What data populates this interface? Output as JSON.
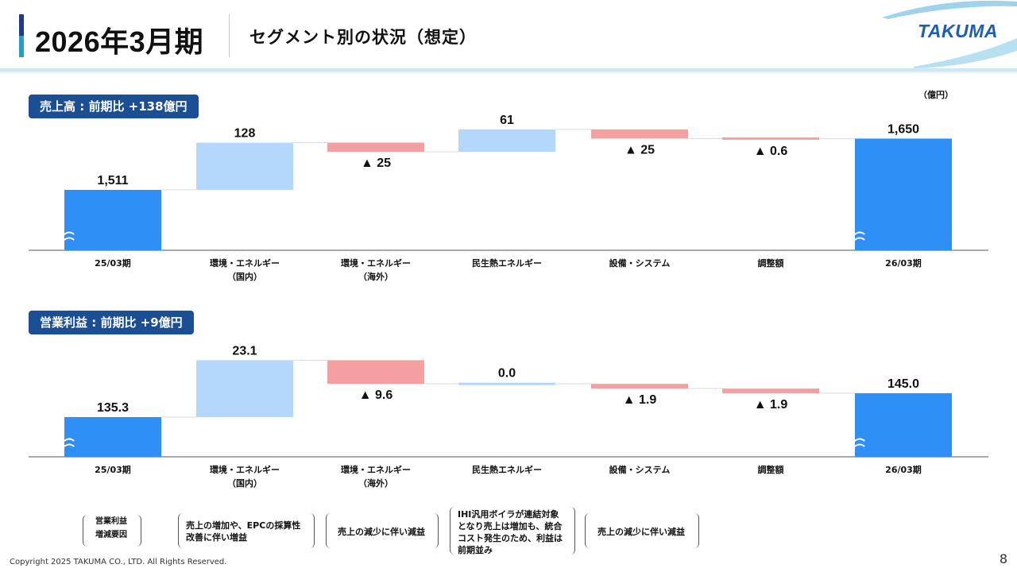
{
  "header": {
    "period": "2026年3月期",
    "subtitle": "セグメント別の状況（想定）",
    "logo": "TAKUMA"
  },
  "unit_label": "（億円）",
  "sections": {
    "sales_label": "売上高 : 前期比 +138億円",
    "op_label": "営業利益 : 前期比 +9億円"
  },
  "colors": {
    "total": "#2e8ff7",
    "increase": "#b3d8fb",
    "decrease": "#f5a0a0",
    "connector": "#d9d9d9",
    "section_bg": "#1b4f93"
  },
  "chart_data": [
    {
      "type": "bar",
      "subtype": "waterfall",
      "title": "売上高 : 前期比 +138億円",
      "categories": [
        "25/03期",
        "環境・エネルギー\n（国内）",
        "環境・エネルギー\n（海外）",
        "民生熱エネルギー",
        "設備・システム",
        "調整額",
        "26/03期"
      ],
      "values": [
        1511,
        128,
        -25,
        61,
        -25,
        -0.6,
        1650
      ],
      "kinds": [
        "total",
        "delta",
        "delta",
        "delta",
        "delta",
        "delta",
        "total"
      ],
      "labels": [
        "1,511",
        "128",
        "▲ 25",
        "61",
        "▲ 25",
        "▲ 0.6",
        "1,650"
      ],
      "axis_break": true
    },
    {
      "type": "bar",
      "subtype": "waterfall",
      "title": "営業利益 : 前期比 +9億円",
      "categories": [
        "25/03期",
        "環境・エネルギー\n（国内）",
        "環境・エネルギー\n（海外）",
        "民生熱エネルギー",
        "設備・システム",
        "調整額",
        "26/03期"
      ],
      "values": [
        135.3,
        23.1,
        -9.6,
        0.0,
        -1.9,
        -1.9,
        145.0
      ],
      "kinds": [
        "total",
        "delta",
        "delta",
        "delta",
        "delta",
        "delta",
        "total"
      ],
      "labels": [
        "135.3",
        "23.1",
        "▲ 9.6",
        "0.0",
        "▲ 1.9",
        "▲ 1.9",
        "145.0"
      ],
      "axis_break": true
    }
  ],
  "notes": {
    "label": "営業利益\n増減要因",
    "items": [
      "売上の増加や、EPCの採算性改善に伴い増益",
      "売上の減少に伴い減益",
      "IHI汎用ボイラが連結対象となり売上は増加も、統合コスト発生のため、利益は前期並み",
      "売上の減少に伴い減益"
    ]
  },
  "footer": {
    "copyright": "Copyright  2025 TAKUMA CO., LTD.  All Rights Reserved.",
    "page": "8"
  }
}
